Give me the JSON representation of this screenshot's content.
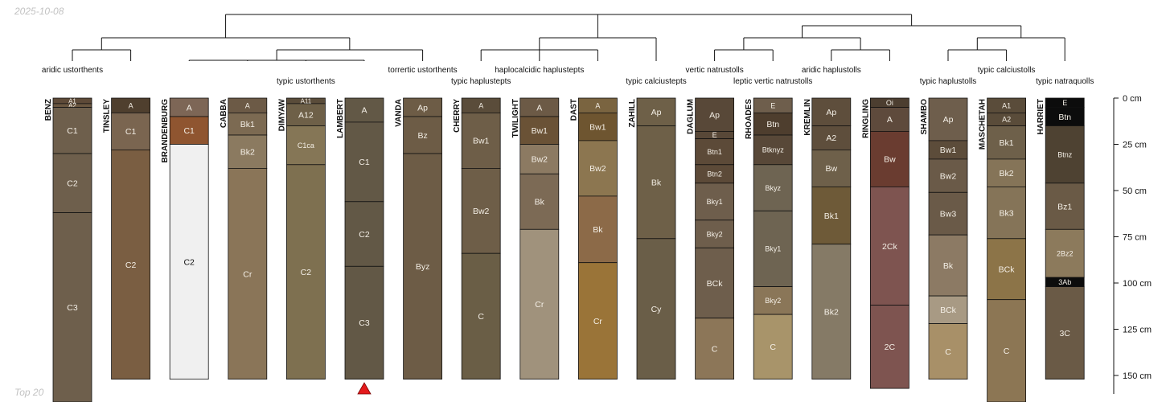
{
  "header": {
    "date": "2025-10-08",
    "footer": "Top 20"
  },
  "colors": {
    "outline": "#111111",
    "tree": "#111111",
    "marker": "#e41a1c",
    "light_text": "#f4efe6",
    "dark_text": "#111111"
  },
  "depth_axis": {
    "max_depth_cm": 160,
    "ticks": [
      0,
      25,
      50,
      75,
      100,
      125,
      150
    ],
    "tick_labels": [
      "0 cm",
      "25 cm",
      "50 cm",
      "75 cm",
      "100 cm",
      "125 cm",
      "150 cm"
    ]
  },
  "taxa_labels": [
    {
      "text": "aridic ustorthents",
      "profile": 0,
      "row": 1
    },
    {
      "text": "typic ustorthents",
      "profile": 4,
      "row": 2
    },
    {
      "text": "torrertic ustorthents",
      "profile": 6,
      "row": 1
    },
    {
      "text": "typic haplustepts",
      "profile": 7,
      "row": 2
    },
    {
      "text": "haplocalcidic haplustepts",
      "profile": 8,
      "row": 1
    },
    {
      "text": "typic calciustepts",
      "profile": 10,
      "row": 2
    },
    {
      "text": "vertic natrustolls",
      "profile": 11,
      "row": 1
    },
    {
      "text": "leptic vertic natrustolls",
      "profile": 12,
      "row": 2
    },
    {
      "text": "aridic haplustolls",
      "profile": 13,
      "row": 1
    },
    {
      "text": "typic haplustolls",
      "profile": 15,
      "row": 2
    },
    {
      "text": "typic calciustolls",
      "profile": 16,
      "row": 1
    },
    {
      "text": "typic natraquolls",
      "profile": 17,
      "row": 2
    }
  ],
  "marker": {
    "profile": 5,
    "shape": "triangle"
  },
  "profiles": [
    {
      "name": "BENZ",
      "horizons": [
        {
          "name": "A1",
          "top": 0,
          "bottom": 3,
          "color": "#5e4a38"
        },
        {
          "name": "A2",
          "top": 3,
          "bottom": 5,
          "color": "#6a5640"
        },
        {
          "name": "C1",
          "top": 5,
          "bottom": 30,
          "color": "#6e5f4c"
        },
        {
          "name": "C2",
          "top": 30,
          "bottom": 62,
          "color": "#6e5f4c"
        },
        {
          "name": "C3",
          "top": 62,
          "bottom": 165,
          "color": "#6e5f4c"
        }
      ]
    },
    {
      "name": "TINSLEY",
      "horizons": [
        {
          "name": "A",
          "top": 0,
          "bottom": 8,
          "color": "#4f3f2e"
        },
        {
          "name": "C1",
          "top": 8,
          "bottom": 28,
          "color": "#7a6550"
        },
        {
          "name": "C2",
          "top": 28,
          "bottom": 152,
          "color": "#7a5e42"
        }
      ]
    },
    {
      "name": "BRANDENBURG",
      "horizons": [
        {
          "name": "A",
          "top": 0,
          "bottom": 10,
          "color": "#7d6656"
        },
        {
          "name": "C1",
          "top": 10,
          "bottom": 25,
          "color": "#8f5530"
        },
        {
          "name": "C2",
          "top": 25,
          "bottom": 152,
          "color": "#f0f0f0"
        }
      ]
    },
    {
      "name": "CABBA",
      "horizons": [
        {
          "name": "A",
          "top": 0,
          "bottom": 8,
          "color": "#6c5a46"
        },
        {
          "name": "Bk1",
          "top": 8,
          "bottom": 20,
          "color": "#7c6a52"
        },
        {
          "name": "Bk2",
          "top": 20,
          "bottom": 38,
          "color": "#8b7a60"
        },
        {
          "name": "Cr",
          "top": 38,
          "bottom": 152,
          "color": "#8a7558"
        }
      ]
    },
    {
      "name": "DIMYAW",
      "horizons": [
        {
          "name": "A11",
          "top": 0,
          "bottom": 3,
          "color": "#5a4c3a"
        },
        {
          "name": "A12",
          "top": 3,
          "bottom": 15,
          "color": "#6e6048"
        },
        {
          "name": "C1ca",
          "top": 15,
          "bottom": 36,
          "color": "#857656"
        },
        {
          "name": "C2",
          "top": 36,
          "bottom": 152,
          "color": "#7e7050"
        }
      ]
    },
    {
      "name": "LAMBERT",
      "horizons": [
        {
          "name": "A",
          "top": 0,
          "bottom": 13,
          "color": "#625846"
        },
        {
          "name": "C1",
          "top": 13,
          "bottom": 56,
          "color": "#625846"
        },
        {
          "name": "C2",
          "top": 56,
          "bottom": 91,
          "color": "#625846"
        },
        {
          "name": "C3",
          "top": 91,
          "bottom": 152,
          "color": "#625846"
        }
      ]
    },
    {
      "name": "VANDA",
      "horizons": [
        {
          "name": "Ap",
          "top": 0,
          "bottom": 10,
          "color": "#6d5c46"
        },
        {
          "name": "Bz",
          "top": 10,
          "bottom": 30,
          "color": "#6d5c46"
        },
        {
          "name": "Byz",
          "top": 30,
          "bottom": 152,
          "color": "#6d5c46"
        }
      ]
    },
    {
      "name": "CHERRY",
      "horizons": [
        {
          "name": "A",
          "top": 0,
          "bottom": 8,
          "color": "#5a4c3a"
        },
        {
          "name": "Bw1",
          "top": 8,
          "bottom": 38,
          "color": "#6e5e48"
        },
        {
          "name": "Bw2",
          "top": 38,
          "bottom": 84,
          "color": "#6e5e48"
        },
        {
          "name": "C",
          "top": 84,
          "bottom": 152,
          "color": "#6a5e46"
        }
      ]
    },
    {
      "name": "TWILIGHT",
      "horizons": [
        {
          "name": "A",
          "top": 0,
          "bottom": 10,
          "color": "#6c5a46"
        },
        {
          "name": "Bw1",
          "top": 10,
          "bottom": 25,
          "color": "#6a5236"
        },
        {
          "name": "Bw2",
          "top": 25,
          "bottom": 41,
          "color": "#8c7a62"
        },
        {
          "name": "Bk",
          "top": 41,
          "bottom": 71,
          "color": "#7c6a55"
        },
        {
          "name": "Cr",
          "top": 71,
          "bottom": 152,
          "color": "#a0927c"
        }
      ]
    },
    {
      "name": "DAST",
      "horizons": [
        {
          "name": "A",
          "top": 0,
          "bottom": 8,
          "color": "#7a6440"
        },
        {
          "name": "Bw1",
          "top": 8,
          "bottom": 23,
          "color": "#6e5530"
        },
        {
          "name": "Bw2",
          "top": 23,
          "bottom": 53,
          "color": "#8c7650"
        },
        {
          "name": "Bk",
          "top": 53,
          "bottom": 89,
          "color": "#8c6a48"
        },
        {
          "name": "Cr",
          "top": 89,
          "bottom": 152,
          "color": "#9a7438"
        }
      ]
    },
    {
      "name": "ZAHILL",
      "horizons": [
        {
          "name": "Ap",
          "top": 0,
          "bottom": 15,
          "color": "#6e6048"
        },
        {
          "name": "Bk",
          "top": 15,
          "bottom": 76,
          "color": "#6e6048"
        },
        {
          "name": "Cy",
          "top": 76,
          "bottom": 152,
          "color": "#6a5e48"
        }
      ]
    },
    {
      "name": "DAGLUM",
      "horizons": [
        {
          "name": "Ap",
          "top": 0,
          "bottom": 18,
          "color": "#584838"
        },
        {
          "name": "E",
          "top": 18,
          "bottom": 22,
          "color": "#584838"
        },
        {
          "name": "Btn1",
          "top": 22,
          "bottom": 36,
          "color": "#5c4a38"
        },
        {
          "name": "Btn2",
          "top": 36,
          "bottom": 46,
          "color": "#5c4a38"
        },
        {
          "name": "Bky1",
          "top": 46,
          "bottom": 66,
          "color": "#6e5e4c"
        },
        {
          "name": "Bky2",
          "top": 66,
          "bottom": 81,
          "color": "#6e5e4c"
        },
        {
          "name": "BCk",
          "top": 81,
          "bottom": 119,
          "color": "#6e5e4c"
        },
        {
          "name": "C",
          "top": 119,
          "bottom": 152,
          "color": "#8c7658"
        }
      ]
    },
    {
      "name": "RHOADES",
      "horizons": [
        {
          "name": "E",
          "top": 0,
          "bottom": 8,
          "color": "#6e5e4c"
        },
        {
          "name": "Btn",
          "top": 8,
          "bottom": 20,
          "color": "#4e3e2e"
        },
        {
          "name": "Btknyz",
          "top": 20,
          "bottom": 36,
          "color": "#584838"
        },
        {
          "name": "Bkyz",
          "top": 36,
          "bottom": 61,
          "color": "#6e6452"
        },
        {
          "name": "Bky1",
          "top": 61,
          "bottom": 102,
          "color": "#6e6452"
        },
        {
          "name": "Bky2",
          "top": 102,
          "bottom": 117,
          "color": "#8a7658"
        },
        {
          "name": "C",
          "top": 117,
          "bottom": 152,
          "color": "#a8946a"
        }
      ]
    },
    {
      "name": "KREMLIN",
      "horizons": [
        {
          "name": "Ap",
          "top": 0,
          "bottom": 15,
          "color": "#5e4e3c"
        },
        {
          "name": "A2",
          "top": 15,
          "bottom": 28,
          "color": "#5e4e3c"
        },
        {
          "name": "Bw",
          "top": 28,
          "bottom": 48,
          "color": "#6e604a"
        },
        {
          "name": "Bk1",
          "top": 48,
          "bottom": 79,
          "color": "#6e5a38"
        },
        {
          "name": "Bk2",
          "top": 79,
          "bottom": 152,
          "color": "#857a66"
        }
      ]
    },
    {
      "name": "RINGLING",
      "horizons": [
        {
          "name": "Oi",
          "top": 0,
          "bottom": 5,
          "color": "#4c3e30"
        },
        {
          "name": "A",
          "top": 5,
          "bottom": 18,
          "color": "#5e4a3c"
        },
        {
          "name": "Bw",
          "top": 18,
          "bottom": 48,
          "color": "#6a3c30"
        },
        {
          "name": "2Ck",
          "top": 48,
          "bottom": 112,
          "color": "#7e5450"
        },
        {
          "name": "2C",
          "top": 112,
          "bottom": 157,
          "color": "#7e5450"
        }
      ]
    },
    {
      "name": "SHAMBO",
      "horizons": [
        {
          "name": "Ap",
          "top": 0,
          "bottom": 23,
          "color": "#6e5e4c"
        },
        {
          "name": "Bw1",
          "top": 23,
          "bottom": 33,
          "color": "#5c4c3a"
        },
        {
          "name": "Bw2",
          "top": 33,
          "bottom": 51,
          "color": "#6a5a48"
        },
        {
          "name": "Bw3",
          "top": 51,
          "bottom": 74,
          "color": "#6a5a48"
        },
        {
          "name": "Bk",
          "top": 74,
          "bottom": 107,
          "color": "#8c7a64"
        },
        {
          "name": "BCk",
          "top": 107,
          "bottom": 122,
          "color": "#a89a84"
        },
        {
          "name": "C",
          "top": 122,
          "bottom": 152,
          "color": "#a89068"
        }
      ]
    },
    {
      "name": "MASCHETAH",
      "horizons": [
        {
          "name": "A1",
          "top": 0,
          "bottom": 8,
          "color": "#5a4c3a"
        },
        {
          "name": "A2",
          "top": 8,
          "bottom": 15,
          "color": "#5a4c3a"
        },
        {
          "name": "Bk1",
          "top": 15,
          "bottom": 33,
          "color": "#6e604a"
        },
        {
          "name": "Bk2",
          "top": 33,
          "bottom": 48,
          "color": "#857458"
        },
        {
          "name": "Bk3",
          "top": 48,
          "bottom": 76,
          "color": "#857458"
        },
        {
          "name": "BCk",
          "top": 76,
          "bottom": 109,
          "color": "#8c7448"
        },
        {
          "name": "C",
          "top": 109,
          "bottom": 165,
          "color": "#8c7654"
        }
      ]
    },
    {
      "name": "HARRIET",
      "horizons": [
        {
          "name": "E",
          "top": 0,
          "bottom": 5,
          "color": "#0c0c0c"
        },
        {
          "name": "Btn",
          "top": 5,
          "bottom": 15,
          "color": "#0c0c0c"
        },
        {
          "name": "Btnz",
          "top": 15,
          "bottom": 46,
          "color": "#4e4232"
        },
        {
          "name": "Bz1",
          "top": 46,
          "bottom": 71,
          "color": "#6a5a46"
        },
        {
          "name": "2Bz2",
          "top": 71,
          "bottom": 97,
          "color": "#8c7a5c"
        },
        {
          "name": "3Ab",
          "top": 97,
          "bottom": 102,
          "color": "#0c0c0c"
        },
        {
          "name": "3C",
          "top": 102,
          "bottom": 152,
          "color": "#6a5a46"
        }
      ]
    }
  ]
}
